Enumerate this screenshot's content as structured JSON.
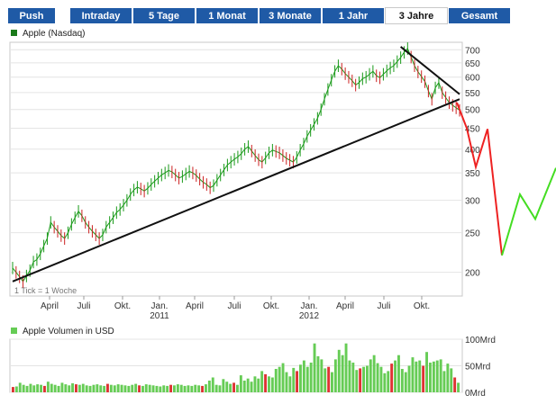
{
  "tabs": [
    {
      "label": "Push",
      "active": false
    },
    {
      "label": "Intraday",
      "active": false
    },
    {
      "label": "5 Tage",
      "active": false
    },
    {
      "label": "1 Monat",
      "active": false
    },
    {
      "label": "3 Monate",
      "active": false
    },
    {
      "label": "1 Jahr",
      "active": false
    },
    {
      "label": "3 Jahre",
      "active": true
    },
    {
      "label": "Gesamt",
      "active": false
    }
  ],
  "colors": {
    "tab_bg": "#1f5aa6",
    "price_series": "#1a9a1a",
    "volume_bar": "#66cc55",
    "volume_spike": "#dd3333",
    "trendline": "#111111",
    "projection_down": "#ee2222",
    "projection_up": "#44dd22"
  },
  "chart_data": [
    {
      "type": "line",
      "title": "Apple (Nasdaq)",
      "note": "1 Tick = 1 Woche",
      "y_scale": "log",
      "ylim": [
        175,
        730
      ],
      "yticks": [
        700,
        650,
        600,
        550,
        500,
        450,
        400,
        350,
        300,
        250,
        200
      ],
      "x_ticks": [
        "April",
        "Juli",
        "Okt.",
        "Jan.",
        "April",
        "Juli",
        "Okt.",
        "Jan.",
        "April",
        "Juli",
        "Okt."
      ],
      "x_year_labels": [
        "2011",
        "2012"
      ],
      "series": [
        {
          "style": "price",
          "values": [
            205,
            200,
            195,
            190,
            196,
            202,
            212,
            215,
            222,
            232,
            242,
            265,
            258,
            252,
            246,
            242,
            250,
            262,
            272,
            282,
            275,
            265,
            258,
            252,
            247,
            242,
            247,
            258,
            265,
            272,
            280,
            285,
            292,
            300,
            310,
            318,
            323,
            320,
            316,
            321,
            328,
            334,
            340,
            346,
            350,
            355,
            352,
            346,
            340,
            343,
            348,
            353,
            350,
            345,
            338,
            332,
            328,
            322,
            326,
            336,
            346,
            356,
            366,
            372,
            378,
            383,
            390,
            400,
            406,
            396,
            386,
            377,
            372,
            381,
            392,
            398,
            395,
            392,
            386,
            380,
            376,
            372,
            382,
            398,
            412,
            430,
            445,
            460,
            476,
            500,
            530,
            560,
            590,
            620,
            640,
            628,
            612,
            600,
            588,
            574,
            582,
            595,
            600,
            610,
            620,
            605,
            598,
            610,
            622,
            632,
            640,
            655,
            670,
            690,
            705,
            672,
            640,
            618,
            602,
            585,
            555,
            530,
            565,
            582,
            550,
            535,
            520,
            512,
            505,
            498
          ]
        },
        {
          "style": "trendline",
          "x": [
            0,
            129
          ],
          "y": [
            190,
            530
          ]
        },
        {
          "style": "trendline",
          "x": [
            112,
            129
          ],
          "y": [
            712,
            545
          ]
        },
        {
          "style": "projection_down",
          "values": [
            520,
            450,
            362,
            448,
            220
          ]
        },
        {
          "style": "projection_up",
          "values": [
            220,
            310,
            270,
            360
          ]
        }
      ]
    },
    {
      "type": "bar",
      "title": "Apple Volumen in USD",
      "yticks": [
        "100Mrd",
        "50Mrd",
        "0Mrd"
      ],
      "ylim": [
        0,
        100
      ],
      "values": [
        10,
        11,
        18,
        14,
        12,
        16,
        13,
        15,
        14,
        12,
        20,
        16,
        14,
        12,
        18,
        15,
        13,
        17,
        15,
        14,
        16,
        13,
        12,
        14,
        15,
        13,
        12,
        16,
        14,
        13,
        15,
        14,
        13,
        12,
        14,
        16,
        13,
        12,
        15,
        14,
        13,
        12,
        11,
        13,
        12,
        14,
        13,
        15,
        14,
        12,
        13,
        12,
        14,
        13,
        12,
        15,
        22,
        28,
        14,
        13,
        25,
        20,
        16,
        18,
        14,
        32,
        22,
        26,
        20,
        30,
        26,
        40,
        34,
        30,
        28,
        44,
        48,
        55,
        38,
        30,
        46,
        40,
        52,
        60,
        48,
        56,
        92,
        68,
        62,
        45,
        48,
        38,
        62,
        80,
        70,
        92,
        60,
        56,
        42,
        45,
        48,
        50,
        62,
        70,
        55,
        48,
        36,
        40,
        54,
        60,
        70,
        44,
        38,
        50,
        66,
        58,
        60,
        50,
        76,
        56,
        58,
        60,
        62,
        40,
        54,
        45,
        28,
        18
      ]
    }
  ]
}
